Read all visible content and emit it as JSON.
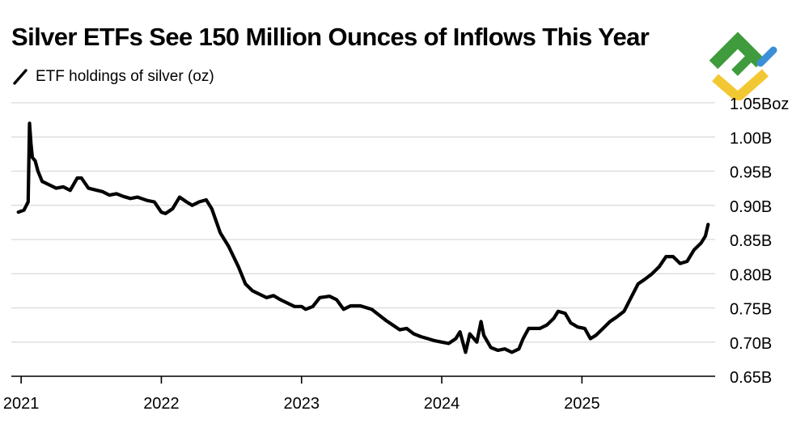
{
  "title": "Silver ETFs See 150 Million Ounces of Inflows This Year",
  "legend": {
    "label": "ETF holdings of silver (oz)"
  },
  "logo": {
    "icon": "green-blue-yellow-chevron-logo"
  },
  "colors": {
    "line": "#000000",
    "grid": "#d9d9d9",
    "axis": "#000000",
    "text": "#000000",
    "logo_green": "#3f9b3c",
    "logo_blue": "#3b8fd6",
    "logo_yellow": "#f2c832"
  },
  "chart_data": {
    "type": "line",
    "title": "Silver ETFs See 150 Million Ounces of Inflows This Year",
    "series_name": "ETF holdings of silver (oz)",
    "xlabel": "",
    "ylabel": "",
    "unit": "oz",
    "ylim": [
      0.65,
      1.05
    ],
    "xlim": [
      2020.93,
      2025.95
    ],
    "grid": true,
    "legend_position": "top-left",
    "y_ticks": [
      {
        "value": 1.05,
        "label": "1.05Boz"
      },
      {
        "value": 1.0,
        "label": "1.00B"
      },
      {
        "value": 0.95,
        "label": "0.95B"
      },
      {
        "value": 0.9,
        "label": "0.90B"
      },
      {
        "value": 0.85,
        "label": "0.85B"
      },
      {
        "value": 0.8,
        "label": "0.80B"
      },
      {
        "value": 0.75,
        "label": "0.75B"
      },
      {
        "value": 0.7,
        "label": "0.70B"
      },
      {
        "value": 0.65,
        "label": "0.65B"
      }
    ],
    "x_ticks": [
      {
        "value": 2021,
        "label": "2021"
      },
      {
        "value": 2022,
        "label": "2022"
      },
      {
        "value": 2023,
        "label": "2023"
      },
      {
        "value": 2024,
        "label": "2024"
      },
      {
        "value": 2025,
        "label": "2025"
      }
    ],
    "x": [
      2020.98,
      2021.02,
      2021.05,
      2021.06,
      2021.07,
      2021.08,
      2021.1,
      2021.12,
      2021.15,
      2021.2,
      2021.25,
      2021.3,
      2021.35,
      2021.4,
      2021.43,
      2021.48,
      2021.52,
      2021.58,
      2021.63,
      2021.68,
      2021.73,
      2021.78,
      2021.83,
      2021.9,
      2021.95,
      2022.0,
      2022.03,
      2022.08,
      2022.13,
      2022.18,
      2022.22,
      2022.27,
      2022.32,
      2022.36,
      2022.42,
      2022.48,
      2022.55,
      2022.6,
      2022.65,
      2022.7,
      2022.75,
      2022.8,
      2022.85,
      2022.9,
      2022.95,
      2023.0,
      2023.03,
      2023.08,
      2023.13,
      2023.2,
      2023.25,
      2023.3,
      2023.35,
      2023.42,
      2023.5,
      2023.55,
      2023.6,
      2023.65,
      2023.7,
      2023.75,
      2023.8,
      2023.85,
      2023.9,
      2023.95,
      2024.0,
      2024.05,
      2024.1,
      2024.13,
      2024.17,
      2024.2,
      2024.25,
      2024.28,
      2024.3,
      2024.35,
      2024.4,
      2024.45,
      2024.5,
      2024.55,
      2024.58,
      2024.62,
      2024.65,
      2024.7,
      2024.75,
      2024.8,
      2024.83,
      2024.88,
      2024.92,
      2024.97,
      2025.02,
      2025.06,
      2025.1,
      2025.15,
      2025.2,
      2025.25,
      2025.3,
      2025.35,
      2025.4,
      2025.45,
      2025.5,
      2025.55,
      2025.6,
      2025.65,
      2025.7,
      2025.75,
      2025.8,
      2025.85,
      2025.88,
      2025.9
    ],
    "values": [
      0.89,
      0.893,
      0.905,
      1.02,
      0.99,
      0.97,
      0.965,
      0.95,
      0.935,
      0.93,
      0.925,
      0.927,
      0.922,
      0.94,
      0.94,
      0.925,
      0.923,
      0.92,
      0.915,
      0.917,
      0.913,
      0.91,
      0.912,
      0.907,
      0.905,
      0.89,
      0.888,
      0.895,
      0.912,
      0.905,
      0.9,
      0.905,
      0.908,
      0.895,
      0.86,
      0.84,
      0.81,
      0.785,
      0.775,
      0.77,
      0.765,
      0.768,
      0.762,
      0.757,
      0.752,
      0.752,
      0.748,
      0.752,
      0.765,
      0.767,
      0.762,
      0.748,
      0.753,
      0.753,
      0.748,
      0.74,
      0.732,
      0.725,
      0.718,
      0.72,
      0.712,
      0.708,
      0.705,
      0.702,
      0.7,
      0.698,
      0.705,
      0.715,
      0.685,
      0.712,
      0.7,
      0.73,
      0.71,
      0.692,
      0.688,
      0.69,
      0.685,
      0.69,
      0.705,
      0.72,
      0.72,
      0.72,
      0.725,
      0.735,
      0.745,
      0.742,
      0.728,
      0.722,
      0.72,
      0.705,
      0.71,
      0.72,
      0.73,
      0.737,
      0.745,
      0.765,
      0.785,
      0.792,
      0.8,
      0.81,
      0.825,
      0.825,
      0.815,
      0.818,
      0.835,
      0.845,
      0.855,
      0.872
    ]
  }
}
